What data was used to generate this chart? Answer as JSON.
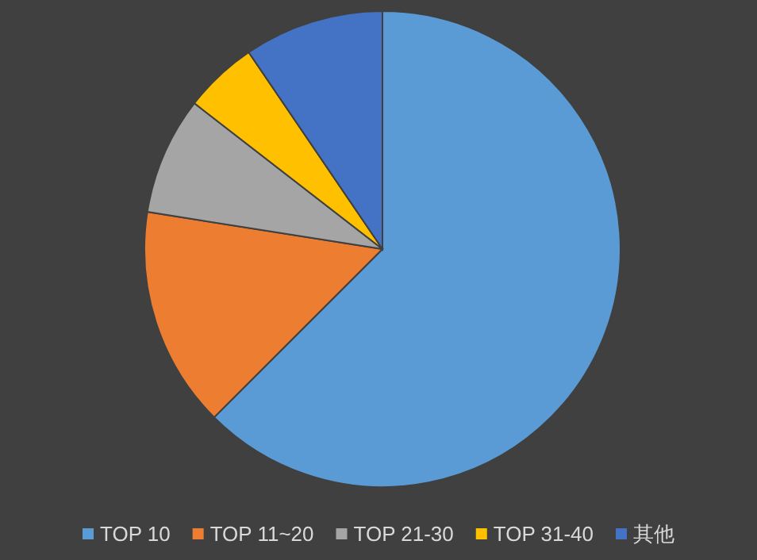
{
  "chart_data": {
    "type": "pie",
    "categories": [
      "TOP 10",
      "TOP 11~20",
      "TOP 21-30",
      "TOP 31-40",
      "其他"
    ],
    "values": [
      62.5,
      15,
      8,
      5,
      9.5
    ],
    "colors": [
      "#5b9bd5",
      "#ed7d31",
      "#a5a5a5",
      "#ffc000",
      "#4472c4"
    ],
    "legend": "bottom"
  }
}
